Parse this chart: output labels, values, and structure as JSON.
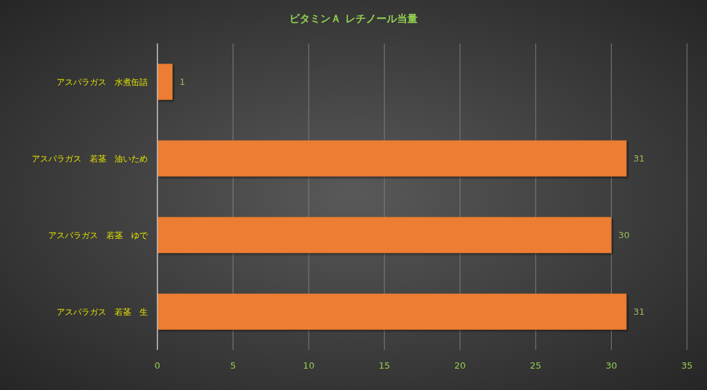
{
  "chart_data": {
    "type": "bar",
    "orientation": "horizontal",
    "title": "ビタミンＡ レチノール当量",
    "categories": [
      "アスパラガス　水煮缶詰",
      "アスパラガス　若茎　油いため",
      "アスパラガス　若茎　ゆで",
      "アスパラガス　若茎　生"
    ],
    "values": [
      1,
      31,
      30,
      31
    ],
    "color": "#ed7d31",
    "xlim": [
      0,
      35
    ],
    "xticks": [
      0,
      5,
      10,
      15,
      20,
      25,
      30,
      35
    ],
    "grid": "x",
    "data_labels": true
  }
}
